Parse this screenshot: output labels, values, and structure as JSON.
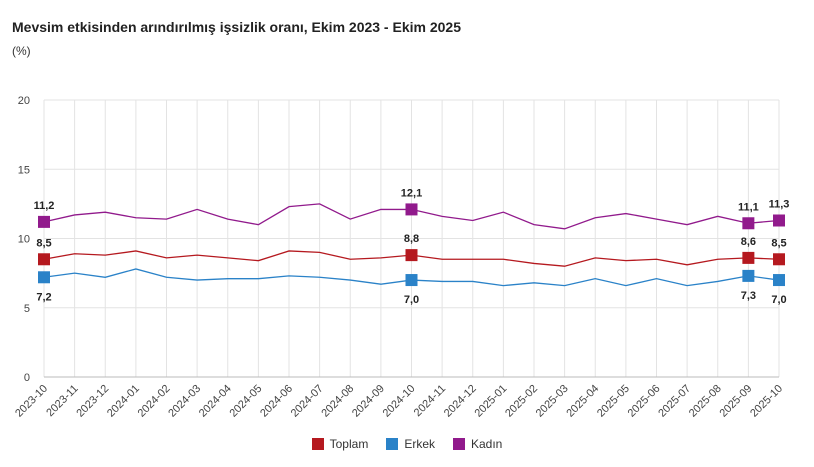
{
  "chart_data": {
    "type": "line",
    "title": "Mevsim etkisinden arındırılmış işsizlik oranı, Ekim 2023 - Ekim 2025",
    "ylabel": "(%)",
    "ylim": [
      0,
      20
    ],
    "yticks": [
      0,
      5,
      10,
      15,
      20
    ],
    "grid": true,
    "legend_position": "bottom",
    "x": [
      "2023-10",
      "2023-11",
      "2023-12",
      "2024-01",
      "2024-02",
      "2024-03",
      "2024-04",
      "2024-05",
      "2024-06",
      "2024-07",
      "2024-08",
      "2024-09",
      "2024-10",
      "2024-11",
      "2024-12",
      "2025-01",
      "2025-02",
      "2025-03",
      "2025-04",
      "2025-05",
      "2025-06",
      "2025-07",
      "2025-08",
      "2025-09",
      "2025-10"
    ],
    "labeled_indices": [
      0,
      12,
      23,
      24
    ],
    "series": [
      {
        "name": "Toplam",
        "color": "#b5191f",
        "label_pos": "above",
        "values": [
          8.5,
          8.9,
          8.8,
          9.1,
          8.6,
          8.8,
          8.6,
          8.4,
          9.1,
          9.0,
          8.5,
          8.6,
          8.8,
          8.5,
          8.5,
          8.5,
          8.2,
          8.0,
          8.6,
          8.4,
          8.5,
          8.1,
          8.5,
          8.6,
          8.5
        ]
      },
      {
        "name": "Erkek",
        "color": "#2a82c8",
        "label_pos": "below",
        "values": [
          7.2,
          7.5,
          7.2,
          7.8,
          7.2,
          7.0,
          7.1,
          7.1,
          7.3,
          7.2,
          7.0,
          6.7,
          7.0,
          6.9,
          6.9,
          6.6,
          6.8,
          6.6,
          7.1,
          6.6,
          7.1,
          6.6,
          6.9,
          7.3,
          7.0
        ]
      },
      {
        "name": "Kadın",
        "color": "#911a8c",
        "label_pos": "above",
        "values": [
          11.2,
          11.7,
          11.9,
          11.5,
          11.4,
          12.1,
          11.4,
          11.0,
          12.3,
          12.5,
          11.4,
          12.1,
          12.1,
          11.6,
          11.3,
          11.9,
          11.0,
          10.7,
          11.5,
          11.8,
          11.4,
          11.0,
          11.6,
          11.1,
          11.3
        ]
      }
    ]
  }
}
